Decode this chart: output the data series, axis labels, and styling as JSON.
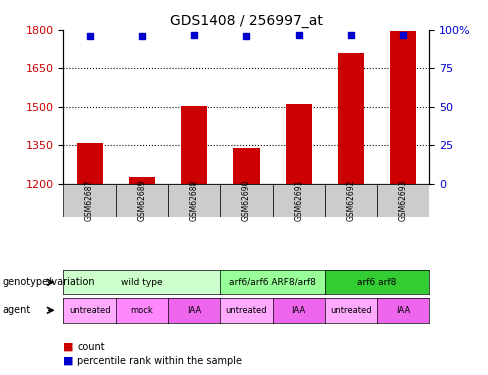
{
  "title": "GDS1408 / 256997_at",
  "samples": [
    "GSM62687",
    "GSM62689",
    "GSM62688",
    "GSM62690",
    "GSM62691",
    "GSM62692",
    "GSM62693"
  ],
  "bar_values": [
    1358,
    1228,
    1505,
    1338,
    1510,
    1710,
    1795
  ],
  "bar_bottom": 1200,
  "percentile_values": [
    96,
    96,
    97,
    96,
    97,
    97,
    97
  ],
  "ylim_left": [
    1200,
    1800
  ],
  "yticks_left": [
    1200,
    1350,
    1500,
    1650,
    1800
  ],
  "yticks_right": [
    0,
    25,
    50,
    75,
    100
  ],
  "bar_color": "#cc0000",
  "percentile_color": "#0000cc",
  "genotype_groups": [
    {
      "label": "wild type",
      "span": [
        0,
        3
      ],
      "color": "#ccffcc"
    },
    {
      "label": "arf6/arf6 ARF8/arf8",
      "span": [
        3,
        5
      ],
      "color": "#99ff99"
    },
    {
      "label": "arf6 arf8",
      "span": [
        5,
        7
      ],
      "color": "#33cc33"
    }
  ],
  "agent_groups": [
    {
      "label": "untreated",
      "span": [
        0,
        1
      ],
      "color": "#ffaaff"
    },
    {
      "label": "mock",
      "span": [
        1,
        2
      ],
      "color": "#ff88ff"
    },
    {
      "label": "IAA",
      "span": [
        2,
        3
      ],
      "color": "#ee66ee"
    },
    {
      "label": "untreated",
      "span": [
        3,
        4
      ],
      "color": "#ffaaff"
    },
    {
      "label": "IAA",
      "span": [
        4,
        5
      ],
      "color": "#ee66ee"
    },
    {
      "label": "untreated",
      "span": [
        5,
        6
      ],
      "color": "#ffaaff"
    },
    {
      "label": "IAA",
      "span": [
        6,
        7
      ],
      "color": "#ee66ee"
    }
  ],
  "left_label_color": "#cc0000",
  "right_label_color": "#0000cc"
}
